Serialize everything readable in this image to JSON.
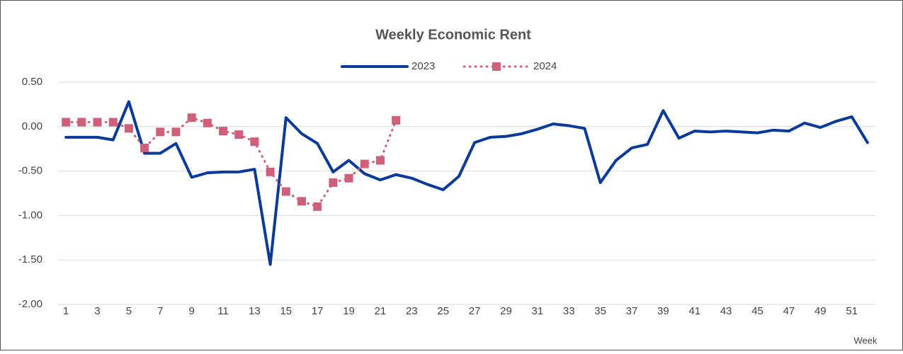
{
  "chart_data": {
    "type": "line",
    "title": "Weekly Economic Rent",
    "x_label": "Week",
    "categories": [
      1,
      null,
      3,
      null,
      5,
      null,
      7,
      null,
      9,
      null,
      11,
      null,
      13,
      null,
      15,
      null,
      17,
      null,
      19,
      null,
      21,
      null,
      23,
      null,
      25,
      null,
      27,
      null,
      29,
      null,
      31,
      null,
      33,
      null,
      35,
      null,
      37,
      null,
      39,
      null,
      41,
      null,
      43,
      null,
      45,
      null,
      47,
      null,
      49,
      null,
      51,
      null
    ],
    "series": [
      {
        "name": "2023",
        "color": "#0a3a9a",
        "style": "solid",
        "values": [
          -0.12,
          -0.12,
          -0.12,
          -0.15,
          0.28,
          -0.3,
          -0.3,
          -0.19,
          -0.57,
          -0.52,
          -0.51,
          -0.51,
          -0.48,
          -1.55,
          0.1,
          -0.08,
          -0.19,
          -0.51,
          -0.38,
          -0.53,
          -0.6,
          -0.54,
          -0.58,
          -0.65,
          -0.71,
          -0.56,
          -0.18,
          -0.12,
          -0.11,
          -0.08,
          -0.03,
          0.03,
          0.01,
          -0.02,
          -0.63,
          -0.38,
          -0.24,
          -0.2,
          0.18,
          -0.13,
          -0.05,
          -0.06,
          -0.05,
          -0.06,
          -0.07,
          -0.04,
          -0.05,
          0.04,
          -0.01,
          0.06,
          0.11,
          -0.18
        ]
      },
      {
        "name": "2024",
        "color": "#d0607a",
        "style": "dotted",
        "marker": "square",
        "values": [
          0.05,
          0.05,
          0.05,
          0.05,
          -0.02,
          -0.24,
          -0.06,
          -0.06,
          0.1,
          0.04,
          -0.05,
          -0.09,
          -0.17,
          -0.51,
          -0.73,
          -0.84,
          -0.9,
          -0.63,
          -0.58,
          -0.42,
          -0.38,
          0.07,
          null,
          null,
          null,
          null,
          null,
          null,
          null,
          null,
          null,
          null,
          null,
          null,
          null,
          null,
          null,
          null,
          null,
          null,
          null,
          null,
          null,
          null,
          null,
          null,
          null,
          null,
          null,
          null,
          null,
          null
        ]
      }
    ],
    "ylim": [
      -2,
      0.5
    ],
    "yticks": [
      {
        "value": 0.5,
        "label": "0.50"
      },
      {
        "value": 0,
        "label": "0.00"
      },
      {
        "value": -0.5,
        "label": "-0.50"
      },
      {
        "value": -1,
        "label": "-1.00"
      },
      {
        "value": -1.5,
        "label": "-1.50"
      },
      {
        "value": -2,
        "label": "-2.00"
      }
    ],
    "grid": true,
    "legend": "top"
  }
}
